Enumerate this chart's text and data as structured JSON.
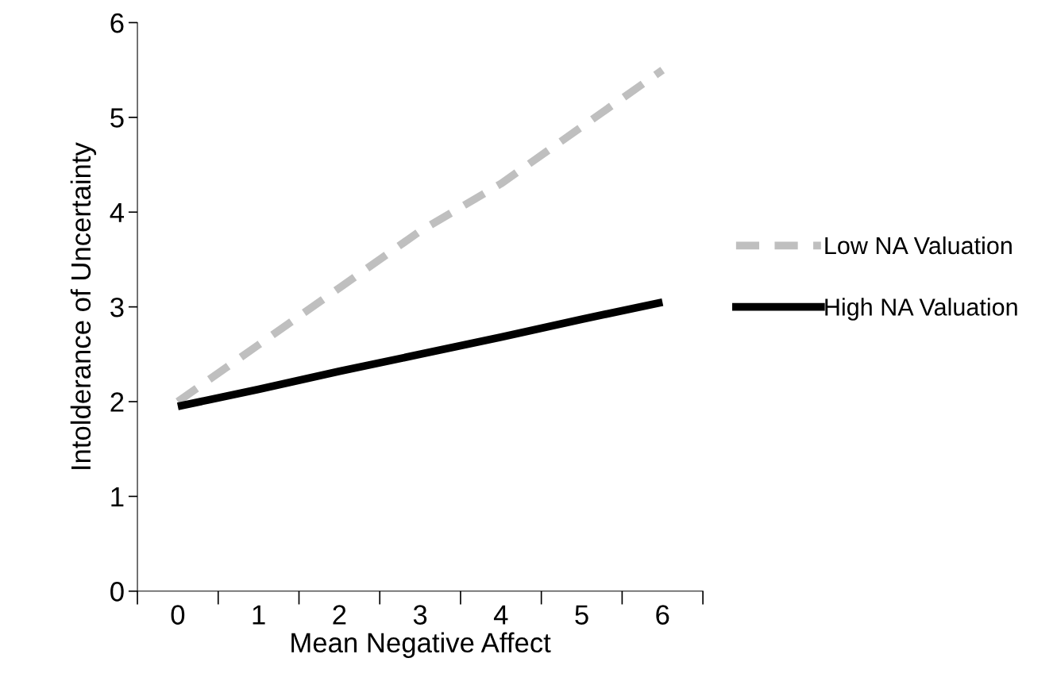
{
  "chart_data": {
    "type": "line",
    "xlabel": "Mean Negative Affect",
    "ylabel": "Intolderance of Uncertainty",
    "categories": [
      "0",
      "1",
      "2",
      "3",
      "4",
      "5",
      "6"
    ],
    "series": [
      {
        "name": "Low NA Valuation",
        "color": "#bfbfbf",
        "line_style": "dashed",
        "values": [
          2.0,
          2.6,
          3.2,
          3.8,
          4.3,
          4.9,
          5.5
        ]
      },
      {
        "name": "High NA Valuation",
        "color": "#000000",
        "line_style": "solid",
        "values": [
          1.95,
          2.13,
          2.32,
          2.5,
          2.68,
          2.87,
          3.05
        ]
      }
    ],
    "ylim": [
      0,
      6
    ],
    "yticks": [
      0,
      1,
      2,
      3,
      4,
      5,
      6
    ],
    "grid": false,
    "legend": "right",
    "marker": "none"
  }
}
